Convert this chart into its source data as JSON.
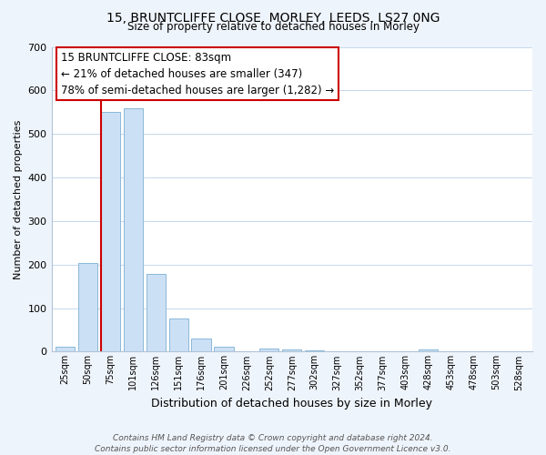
{
  "title": "15, BRUNTCLIFFE CLOSE, MORLEY, LEEDS, LS27 0NG",
  "subtitle": "Size of property relative to detached houses in Morley",
  "xlabel": "Distribution of detached houses by size in Morley",
  "ylabel": "Number of detached properties",
  "bar_labels": [
    "25sqm",
    "50sqm",
    "75sqm",
    "101sqm",
    "126sqm",
    "151sqm",
    "176sqm",
    "201sqm",
    "226sqm",
    "252sqm",
    "277sqm",
    "302sqm",
    "327sqm",
    "352sqm",
    "377sqm",
    "403sqm",
    "428sqm",
    "453sqm",
    "478sqm",
    "503sqm",
    "528sqm"
  ],
  "bar_values": [
    12,
    204,
    550,
    558,
    178,
    76,
    30,
    11,
    0,
    8,
    5,
    3,
    0,
    0,
    0,
    0,
    5,
    0,
    0,
    0,
    0
  ],
  "bar_color": "#cce0f5",
  "bar_edge_color": "#8ab8d8",
  "vline_color": "#cc0000",
  "vline_at_index": 2,
  "ylim": [
    0,
    700
  ],
  "yticks": [
    0,
    100,
    200,
    300,
    400,
    500,
    600,
    700
  ],
  "annotation_title": "15 BRUNTCLIFFE CLOSE: 83sqm",
  "annotation_line1": "← 21% of detached houses are smaller (347)",
  "annotation_line2": "78% of semi-detached houses are larger (1,282) →",
  "footer1": "Contains HM Land Registry data © Crown copyright and database right 2024.",
  "footer2": "Contains public sector information licensed under the Open Government Licence v3.0.",
  "bg_color": "#eef4fb",
  "plot_bg_color": "#ffffff",
  "grid_color": "#c5d8ed"
}
